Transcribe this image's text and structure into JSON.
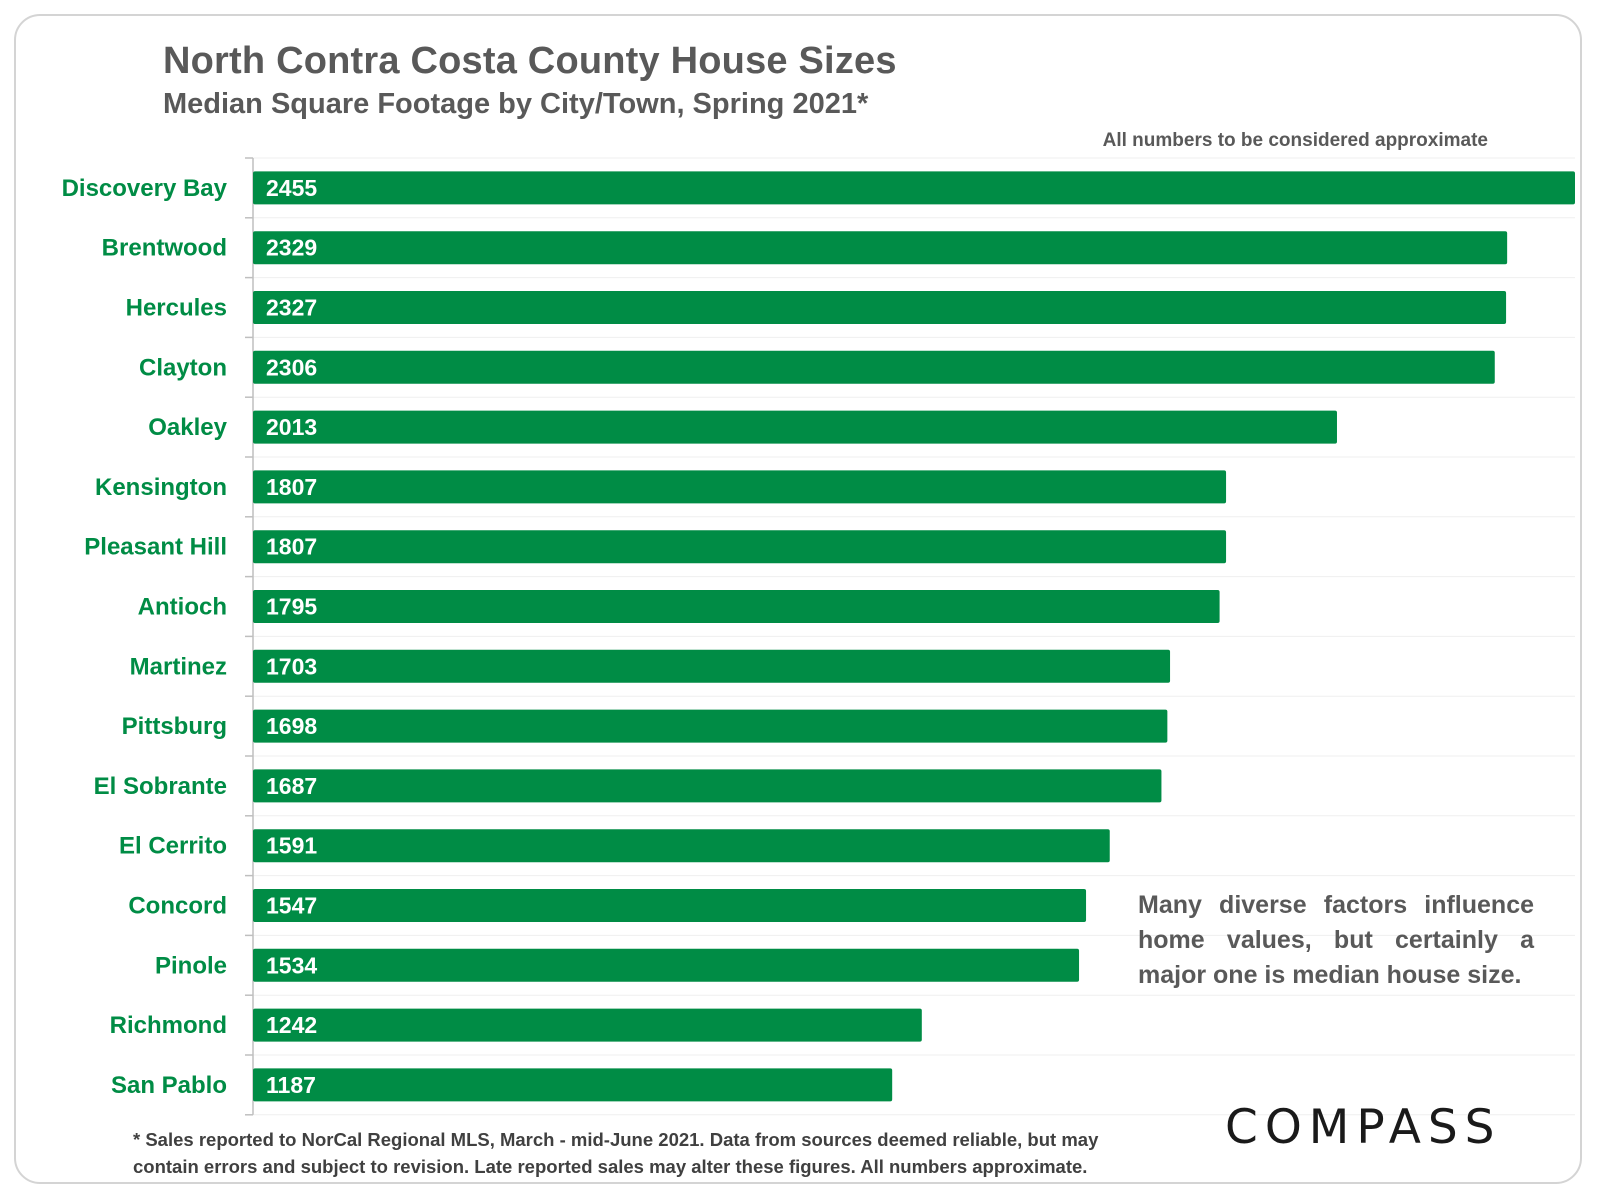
{
  "title": "North Contra Costa County House Sizes",
  "subtitle": "Median Square Footage by City/Town, Spring 2021*",
  "approx_note": "All numbers to be considered approximate",
  "annotation": "Many diverse factors influence home values, but certainly a major one is median house size.",
  "footnote_line1": "* Sales reported to NorCal Regional MLS, March - mid-June 2021. Data from sources deemed reliable, but may",
  "footnote_line2": "contain errors and subject to revision. Late reported sales may alter these figures. All numbers approximate.",
  "logo": "COMPASS",
  "colors": {
    "bar": "#008C45",
    "label": "#008C45",
    "text": "#595959"
  },
  "chart_data": {
    "type": "bar",
    "orientation": "horizontal",
    "categories": [
      "Discovery Bay",
      "Brentwood",
      "Hercules",
      "Clayton",
      "Oakley",
      "Kensington",
      "Pleasant Hill",
      "Antioch",
      "Martinez",
      "Pittsburg",
      "El Sobrante",
      "El Cerrito",
      "Concord",
      "Pinole",
      "Richmond",
      "San Pablo"
    ],
    "values": [
      2455,
      2329,
      2327,
      2306,
      2013,
      1807,
      1807,
      1795,
      1703,
      1698,
      1687,
      1591,
      1547,
      1534,
      1242,
      1187
    ],
    "title": "North Contra Costa County House Sizes",
    "subtitle": "Median Square Footage by City/Town, Spring 2021*",
    "xlabel": "",
    "ylabel": "",
    "xlim": [
      0,
      2455
    ],
    "grid": true,
    "data_labels": "inside-left"
  }
}
